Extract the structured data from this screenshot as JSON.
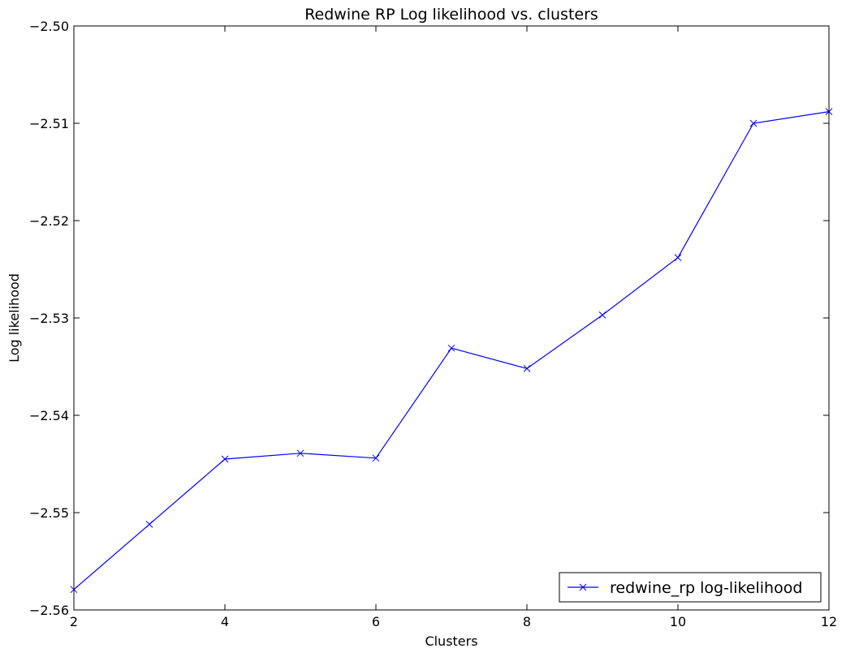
{
  "chart_data": {
    "type": "line",
    "title": "Redwine RP Log likelihood vs. clusters",
    "xlabel": "Clusters",
    "ylabel": "Log likelihood",
    "xlim": [
      2,
      12
    ],
    "ylim": [
      -2.56,
      -2.5
    ],
    "x_ticks": [
      2,
      4,
      6,
      8,
      10,
      12
    ],
    "y_ticks": [
      -2.56,
      -2.55,
      -2.54,
      -2.53,
      -2.52,
      -2.51,
      -2.5
    ],
    "x_tick_labels": [
      "2",
      "4",
      "6",
      "8",
      "10",
      "12"
    ],
    "y_tick_labels": [
      "−2.56",
      "−2.55",
      "−2.54",
      "−2.53",
      "−2.52",
      "−2.51",
      "−2.50"
    ],
    "grid": false,
    "legend_position": "lower-right",
    "series": [
      {
        "name": "redwine_rp log-likelihood",
        "color": "#0000ff",
        "marker": "x",
        "x": [
          2,
          3,
          4,
          5,
          6,
          7,
          8,
          9,
          10,
          11,
          12
        ],
        "y": [
          -2.5579,
          -2.5512,
          -2.5445,
          -2.5439,
          -2.5444,
          -2.5331,
          -2.5352,
          -2.5297,
          -2.5238,
          -2.51,
          -2.5088
        ]
      }
    ]
  }
}
